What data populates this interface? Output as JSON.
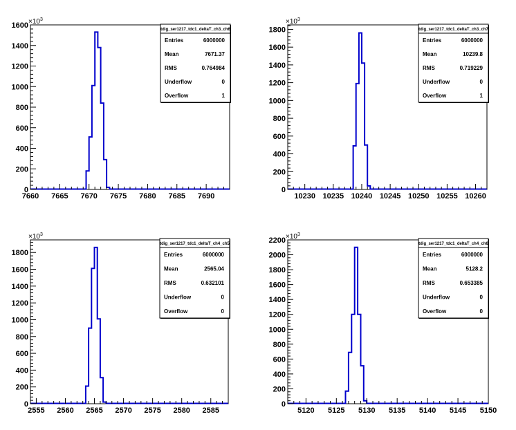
{
  "line_color": "#0000cc",
  "frame_color": "#000000",
  "stat_labels": [
    "Entries",
    "Mean",
    "RMS",
    "Underflow",
    "Overflow"
  ],
  "chart_data": [
    {
      "type": "histogram",
      "title": "tdig_ser1217_tdc1_deltaT_ch3_ch6",
      "y_multiplier": "×10",
      "y_multiplier_exp": "3",
      "xlim": [
        7660,
        7694
      ],
      "ylim": [
        0,
        1600
      ],
      "x_ticks": [
        7660,
        7665,
        7670,
        7675,
        7680,
        7685,
        7690
      ],
      "y_ticks": [
        0,
        200,
        400,
        600,
        800,
        1000,
        1200,
        1400,
        1600
      ],
      "bin_width": 0.5,
      "bin_starts": [
        7669.5,
        7670.0,
        7670.5,
        7671.0,
        7671.5,
        7672.0,
        7672.5,
        7673.0
      ],
      "values": [
        180,
        510,
        1010,
        1530,
        1380,
        840,
        290,
        20
      ],
      "stats": {
        "Entries": "6000000",
        "Mean": "7671.37",
        "RMS": "0.764984",
        "Underflow": "0",
        "Overflow": "1"
      }
    },
    {
      "type": "histogram",
      "title": "tdig_ser1217_tdc1_deltaT_ch3_ch7",
      "y_multiplier": "×10",
      "y_multiplier_exp": "3",
      "xlim": [
        10227,
        10262
      ],
      "ylim": [
        0,
        1850
      ],
      "x_ticks": [
        10230,
        10235,
        10240,
        10245,
        10250,
        10255,
        10260
      ],
      "y_ticks": [
        0,
        200,
        400,
        600,
        800,
        1000,
        1200,
        1400,
        1600,
        1800
      ],
      "bin_width": 0.5,
      "bin_starts": [
        10238.5,
        10239.0,
        10239.5,
        10240.0,
        10240.5,
        10241.0
      ],
      "values": [
        490,
        1190,
        1760,
        1420,
        500,
        40
      ],
      "stats": {
        "Entries": "6000000",
        "Mean": "10239.8",
        "RMS": "0.719229",
        "Underflow": "0",
        "Overflow": "1"
      }
    },
    {
      "type": "histogram",
      "title": "tdig_ser1217_tdc1_deltaT_ch4_ch5",
      "y_multiplier": "×10",
      "y_multiplier_exp": "3",
      "xlim": [
        2554,
        2588
      ],
      "ylim": [
        0,
        1950
      ],
      "x_ticks": [
        2555,
        2560,
        2565,
        2570,
        2575,
        2580,
        2585
      ],
      "y_ticks": [
        0,
        200,
        400,
        600,
        800,
        1000,
        1200,
        1400,
        1600,
        1800
      ],
      "bin_width": 0.5,
      "bin_starts": [
        2563.5,
        2564.0,
        2564.5,
        2565.0,
        2565.5,
        2566.0,
        2566.5
      ],
      "values": [
        210,
        900,
        1610,
        1860,
        1010,
        310,
        20
      ],
      "stats": {
        "Entries": "6000000",
        "Mean": "2565.04",
        "RMS": "0.632101",
        "Underflow": "0",
        "Overflow": "0"
      }
    },
    {
      "type": "histogram",
      "title": "tdig_ser1217_tdc1_deltaT_ch4_ch6",
      "y_multiplier": "×10",
      "y_multiplier_exp": "3",
      "xlim": [
        5117,
        5150
      ],
      "ylim": [
        0,
        2200
      ],
      "x_ticks": [
        5120,
        5125,
        5130,
        5135,
        5140,
        5145,
        5150
      ],
      "y_ticks": [
        0,
        200,
        400,
        600,
        800,
        1000,
        1200,
        1400,
        1600,
        1800,
        2000,
        2200
      ],
      "bin_width": 0.5,
      "bin_starts": [
        5126.5,
        5127.0,
        5127.5,
        5128.0,
        5128.5,
        5129.0,
        5129.5
      ],
      "values": [
        170,
        690,
        1200,
        2100,
        1200,
        510,
        40
      ],
      "stats": {
        "Entries": "6000000",
        "Mean": "5128.2",
        "RMS": "0.653385",
        "Underflow": "0",
        "Overflow": "0"
      }
    }
  ]
}
